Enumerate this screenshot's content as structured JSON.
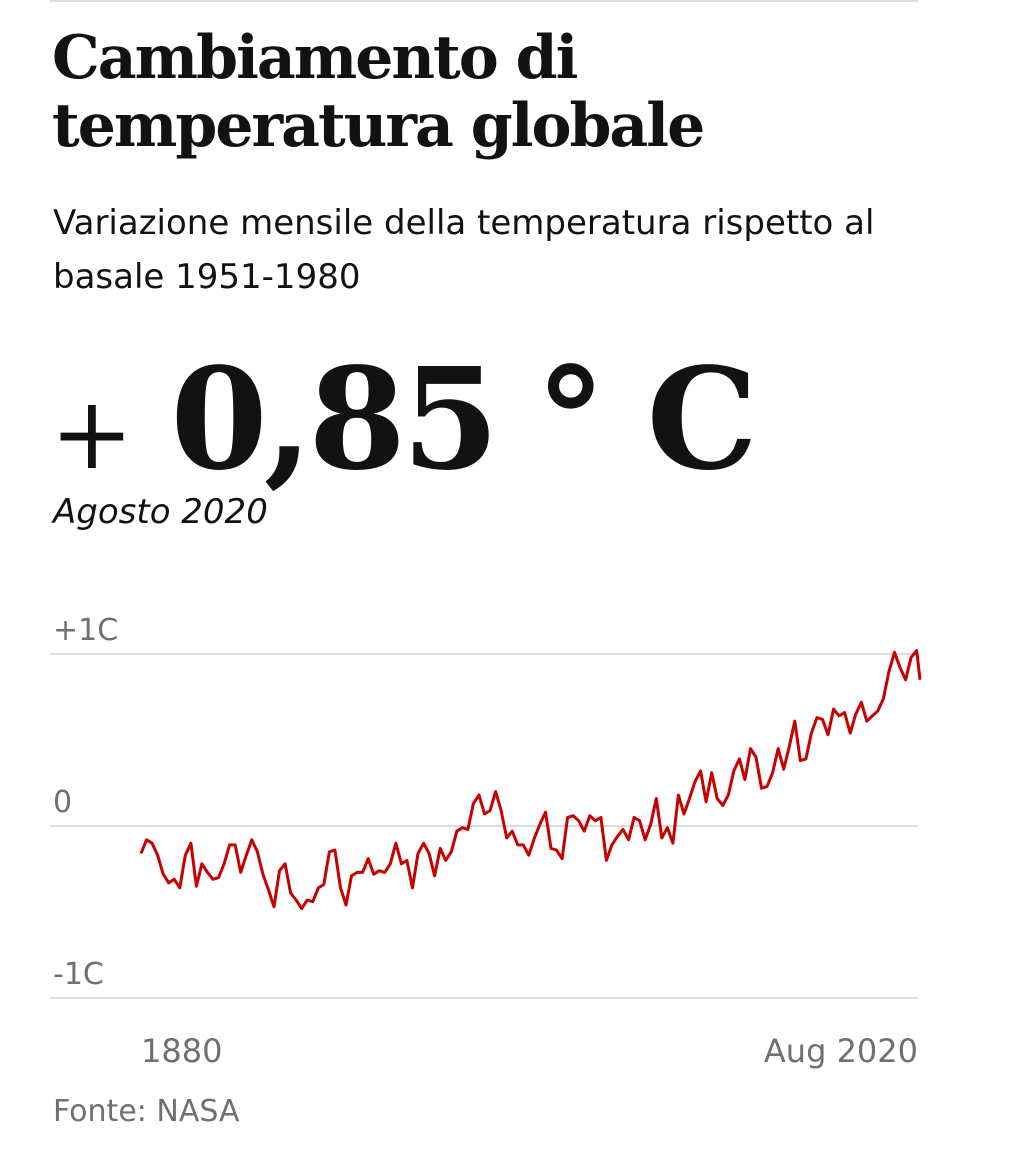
{
  "header": {
    "title": "Cambiamento di temperatura globale",
    "subtitle": "Variazione mensile della temperatura rispetto al basale 1951-1980"
  },
  "headline_value": {
    "sign": "+",
    "value": "0,85",
    "unit": "° C",
    "period": "Agosto 2020"
  },
  "source": "Fonte: NASA",
  "colors": {
    "line": "#c70000",
    "grid": "#dcdcdc",
    "axis_text": "#707070"
  },
  "chart_data": {
    "type": "line",
    "title": "",
    "xlabel": "",
    "ylabel": "",
    "xlim": [
      1880,
      2020.6
    ],
    "ylim": [
      -1,
      1
    ],
    "grid": true,
    "y_ticks": [
      {
        "value": 1,
        "label": "+1C"
      },
      {
        "value": 0,
        "label": "0"
      },
      {
        "value": -1,
        "label": "-1C"
      }
    ],
    "x_ticks": [
      {
        "value": 1880,
        "label": "1880"
      },
      {
        "value": 2020.6,
        "label": "Aug 2020"
      }
    ],
    "series": [
      {
        "x_start": 1880,
        "x_step": 1,
        "values": [
          -0.16,
          -0.08,
          -0.1,
          -0.17,
          -0.28,
          -0.33,
          -0.31,
          -0.36,
          -0.17,
          -0.1,
          -0.35,
          -0.22,
          -0.27,
          -0.31,
          -0.3,
          -0.22,
          -0.11,
          -0.11,
          -0.27,
          -0.17,
          -0.08,
          -0.15,
          -0.28,
          -0.37,
          -0.47,
          -0.26,
          -0.22,
          -0.39,
          -0.43,
          -0.48,
          -0.43,
          -0.44,
          -0.36,
          -0.34,
          -0.15,
          -0.14,
          -0.36,
          -0.46,
          -0.29,
          -0.27,
          -0.27,
          -0.19,
          -0.28,
          -0.26,
          -0.27,
          -0.22,
          -0.1,
          -0.22,
          -0.2,
          -0.36,
          -0.16,
          -0.1,
          -0.16,
          -0.29,
          -0.13,
          -0.2,
          -0.15,
          -0.03,
          -0.01,
          -0.02,
          0.13,
          0.18,
          0.07,
          0.09,
          0.2,
          0.09,
          -0.07,
          -0.03,
          -0.11,
          -0.11,
          -0.17,
          -0.07,
          0.01,
          0.08,
          -0.13,
          -0.14,
          -0.19,
          0.05,
          0.06,
          0.03,
          -0.03,
          0.06,
          0.03,
          0.05,
          -0.2,
          -0.11,
          -0.06,
          -0.02,
          -0.08,
          0.05,
          0.03,
          -0.08,
          0.01,
          0.16,
          -0.07,
          -0.01,
          -0.1,
          0.18,
          0.07,
          0.16,
          0.26,
          0.32,
          0.14,
          0.31,
          0.16,
          0.12,
          0.18,
          0.32,
          0.39,
          0.27,
          0.45,
          0.4,
          0.22,
          0.23,
          0.31,
          0.45,
          0.33,
          0.46,
          0.61,
          0.38,
          0.39,
          0.54,
          0.63,
          0.62,
          0.53,
          0.68,
          0.64,
          0.66,
          0.54,
          0.65,
          0.72,
          0.61,
          0.64,
          0.67,
          0.74,
          0.9,
          1.01,
          0.92,
          0.85,
          0.98,
          1.02
        ],
        "last_point": {
          "x": 2020.6,
          "y": 0.85
        }
      }
    ]
  }
}
